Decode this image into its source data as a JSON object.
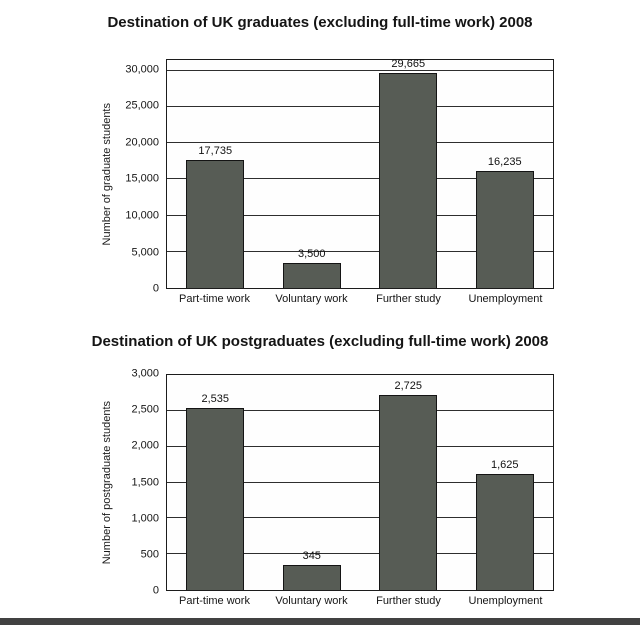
{
  "page": {
    "background": "#ffffff"
  },
  "chart_data": [
    {
      "type": "bar",
      "title": "Destination of UK graduates (excluding full-time work) 2008",
      "ylabel": "Number of graduate students",
      "xlabel": "",
      "categories": [
        "Part-time work",
        "Voluntary work",
        "Further study",
        "Unemployment"
      ],
      "values": [
        17735,
        3500,
        29665,
        16235
      ],
      "value_labels": [
        "17,735",
        "3,500",
        "29,665",
        "16,235"
      ],
      "yticks": [
        0,
        5000,
        10000,
        15000,
        20000,
        25000,
        30000
      ],
      "ytick_labels": [
        "0",
        "5,000",
        "10,000",
        "15,000",
        "20,000",
        "25,000",
        "30,000"
      ],
      "ylim": [
        0,
        31500
      ],
      "grid": true,
      "legend": false,
      "bar_color": "#575c55",
      "bar_border": "#141414"
    },
    {
      "type": "bar",
      "title": "Destination of UK postgraduates (excluding full-time work) 2008",
      "ylabel": "Number of postgraduate students",
      "xlabel": "",
      "categories": [
        "Part-time work",
        "Voluntary work",
        "Further study",
        "Unemployment"
      ],
      "values": [
        2535,
        345,
        2725,
        1625
      ],
      "value_labels": [
        "2,535",
        "345",
        "2,725",
        "1,625"
      ],
      "yticks": [
        0,
        500,
        1000,
        1500,
        2000,
        2500,
        3000
      ],
      "ytick_labels": [
        "0",
        "500",
        "1,000",
        "1,500",
        "2,000",
        "2,500",
        "3,000"
      ],
      "ylim": [
        0,
        3000
      ],
      "grid": true,
      "legend": false,
      "bar_color": "#575c55",
      "bar_border": "#141414"
    }
  ]
}
